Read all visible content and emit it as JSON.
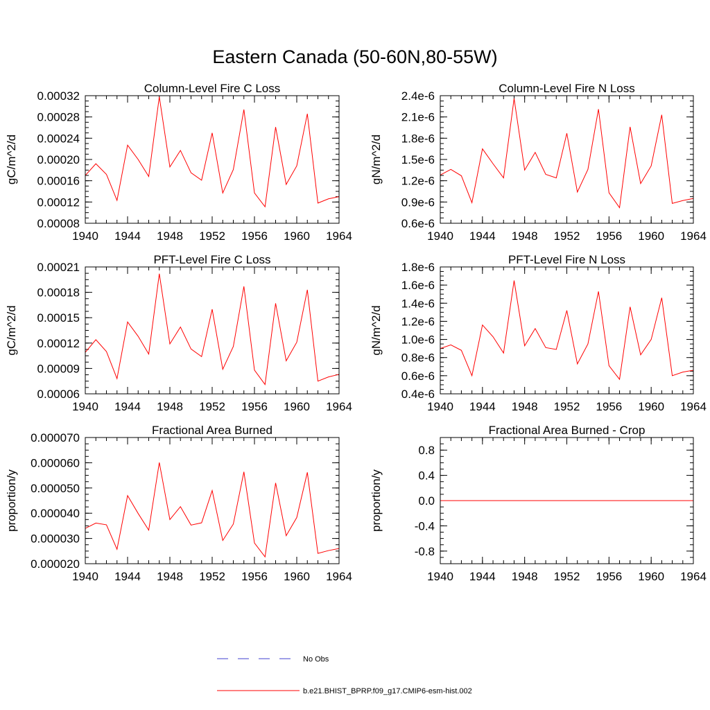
{
  "figure": {
    "title": "Eastern Canada (50-60N,80-55W)"
  },
  "colors": {
    "model_line": "#ff0000",
    "obs_line": "#3f3fcf",
    "axis": "#000000"
  },
  "legend": {
    "placement": "bottom-center",
    "entries": [
      {
        "label": "No Obs",
        "style": "dashed",
        "color": "#3f3fcf"
      },
      {
        "label": "b.e21.BHIST_BPRP.f09_g17.CMIP6-esm-hist.002",
        "style": "solid",
        "color": "#ff0000"
      }
    ]
  },
  "chart_data": [
    {
      "type": "line",
      "title": "Column-Level Fire C Loss",
      "xlabel": "",
      "ylabel": "gC/m^2/d",
      "xlim": [
        1940,
        1964
      ],
      "ylim": [
        8e-05,
        0.00032
      ],
      "xticks": [
        "1940",
        "1944",
        "1948",
        "1952",
        "1956",
        "1960",
        "1964"
      ],
      "yticks": [
        "0.00008",
        "0.00012",
        "0.00016",
        "0.00020",
        "0.00024",
        "0.00028",
        "0.00032"
      ],
      "x": [
        1940,
        1941,
        1942,
        1943,
        1944,
        1945,
        1946,
        1947,
        1948,
        1949,
        1950,
        1951,
        1952,
        1953,
        1954,
        1955,
        1956,
        1957,
        1958,
        1959,
        1960,
        1961,
        1962,
        1963,
        1964
      ],
      "series": [
        {
          "name": "b.e21.BHIST_BPRP.f09_g17.CMIP6-esm-hist.002",
          "values": [
            0.00017,
            0.000192,
            0.000172,
            0.000123,
            0.000227,
            0.0002,
            0.000168,
            0.000318,
            0.000186,
            0.000217,
            0.000175,
            0.000161,
            0.00025,
            0.000137,
            0.000181,
            0.000294,
            0.000137,
            0.000111,
            0.000261,
            0.000153,
            0.000188,
            0.000286,
            0.000118,
            0.000126,
            0.00013
          ]
        }
      ]
    },
    {
      "type": "line",
      "title": "Column-Level Fire N Loss",
      "xlabel": "",
      "ylabel": "gN/m^2/d",
      "xlim": [
        1940,
        1964
      ],
      "ylim": [
        6e-07,
        2.4e-06
      ],
      "xticks": [
        "1940",
        "1944",
        "1948",
        "1952",
        "1956",
        "1960",
        "1964"
      ],
      "yticks": [
        "0.6e-6",
        "0.9e-6",
        "1.2e-6",
        "1.5e-6",
        "1.8e-6",
        "2.1e-6",
        "2.4e-6"
      ],
      "x": [
        1940,
        1941,
        1942,
        1943,
        1944,
        1945,
        1946,
        1947,
        1948,
        1949,
        1950,
        1951,
        1952,
        1953,
        1954,
        1955,
        1956,
        1957,
        1958,
        1959,
        1960,
        1961,
        1962,
        1963,
        1964
      ],
      "series": [
        {
          "name": "b.e21.BHIST_BPRP.f09_g17.CMIP6-esm-hist.002",
          "values": [
            1.28e-06,
            1.36e-06,
            1.27e-06,
            8.9e-07,
            1.65e-06,
            1.44e-06,
            1.24e-06,
            2.36e-06,
            1.35e-06,
            1.6e-06,
            1.29e-06,
            1.24e-06,
            1.87e-06,
            1.04e-06,
            1.36e-06,
            2.21e-06,
            1.03e-06,
            8.2e-07,
            1.96e-06,
            1.16e-06,
            1.41e-06,
            2.13e-06,
            8.8e-07,
            9.2e-07,
            9.5e-07
          ]
        }
      ]
    },
    {
      "type": "line",
      "title": "PFT-Level Fire C Loss",
      "xlabel": "",
      "ylabel": "gC/m^2/d",
      "xlim": [
        1940,
        1964
      ],
      "ylim": [
        6e-05,
        0.00021
      ],
      "xticks": [
        "1940",
        "1944",
        "1948",
        "1952",
        "1956",
        "1960",
        "1964"
      ],
      "yticks": [
        "0.00006",
        "0.00009",
        "0.00012",
        "0.00015",
        "0.00018",
        "0.00021"
      ],
      "x": [
        1940,
        1941,
        1942,
        1943,
        1944,
        1945,
        1946,
        1947,
        1948,
        1949,
        1950,
        1951,
        1952,
        1953,
        1954,
        1955,
        1956,
        1957,
        1958,
        1959,
        1960,
        1961,
        1962,
        1963,
        1964
      ],
      "series": [
        {
          "name": "b.e21.BHIST_BPRP.f09_g17.CMIP6-esm-hist.002",
          "values": [
            0.000109,
            0.000124,
            0.00011,
            7.8e-05,
            0.000145,
            0.000128,
            0.000107,
            0.000202,
            0.000119,
            0.000139,
            0.000113,
            0.000104,
            0.00016,
            8.9e-05,
            0.000116,
            0.000187,
            8.8e-05,
            7.1e-05,
            0.000167,
            9.9e-05,
            0.000121,
            0.000183,
            7.5e-05,
            8e-05,
            8.3e-05
          ]
        }
      ]
    },
    {
      "type": "line",
      "title": "PFT-Level Fire N Loss",
      "xlabel": "",
      "ylabel": "gN/m^2/d",
      "xlim": [
        1940,
        1964
      ],
      "ylim": [
        4e-07,
        1.8e-06
      ],
      "xticks": [
        "1940",
        "1944",
        "1948",
        "1952",
        "1956",
        "1960",
        "1964"
      ],
      "yticks": [
        "0.4e-6",
        "0.6e-6",
        "0.8e-6",
        "1.0e-6",
        "1.2e-6",
        "1.4e-6",
        "1.6e-6",
        "1.8e-6"
      ],
      "x": [
        1940,
        1941,
        1942,
        1943,
        1944,
        1945,
        1946,
        1947,
        1948,
        1949,
        1950,
        1951,
        1952,
        1953,
        1954,
        1955,
        1956,
        1957,
        1958,
        1959,
        1960,
        1961,
        1962,
        1963,
        1964
      ],
      "series": [
        {
          "name": "b.e21.BHIST_BPRP.f09_g17.CMIP6-esm-hist.002",
          "values": [
            9e-07,
            9.4e-07,
            8.8e-07,
            6e-07,
            1.16e-06,
            1.03e-06,
            8.5e-07,
            1.65e-06,
            9.3e-07,
            1.12e-06,
            9.1e-07,
            8.9e-07,
            1.32e-06,
            7.3e-07,
            9.5e-07,
            1.53e-06,
            7.1e-07,
            5.6e-07,
            1.36e-06,
            8.3e-07,
            1e-06,
            1.46e-06,
            6e-07,
            6.4e-07,
            6.6e-07
          ]
        }
      ]
    },
    {
      "type": "line",
      "title": "Fractional Area Burned",
      "xlabel": "",
      "ylabel": "proportion/y",
      "xlim": [
        1940,
        1964
      ],
      "ylim": [
        2e-05,
        7e-05
      ],
      "xticks": [
        "1940",
        "1944",
        "1948",
        "1952",
        "1956",
        "1960",
        "1964"
      ],
      "yticks": [
        "0.000020",
        "0.000030",
        "0.000040",
        "0.000050",
        "0.000060",
        "0.000070"
      ],
      "x": [
        1940,
        1941,
        1942,
        1943,
        1944,
        1945,
        1946,
        1947,
        1948,
        1949,
        1950,
        1951,
        1952,
        1953,
        1954,
        1955,
        1956,
        1957,
        1958,
        1959,
        1960,
        1961,
        1962,
        1963,
        1964
      ],
      "series": [
        {
          "name": "b.e21.BHIST_BPRP.f09_g17.CMIP6-esm-hist.002",
          "values": [
            3.4e-05,
            3.61e-05,
            3.54e-05,
            2.57e-05,
            4.7e-05,
            3.99e-05,
            3.33e-05,
            6.01e-05,
            3.75e-05,
            4.26e-05,
            3.53e-05,
            3.62e-05,
            4.9e-05,
            2.92e-05,
            3.57e-05,
            5.64e-05,
            2.82e-05,
            2.27e-05,
            5.2e-05,
            3.11e-05,
            3.83e-05,
            5.62e-05,
            2.41e-05,
            2.52e-05,
            2.6e-05
          ]
        }
      ]
    },
    {
      "type": "line",
      "title": "Fractional Area Burned - Crop",
      "xlabel": "",
      "ylabel": "proportion/y",
      "xlim": [
        1940,
        1964
      ],
      "ylim": [
        -1.0,
        1.0
      ],
      "xticks": [
        "1940",
        "1944",
        "1948",
        "1952",
        "1956",
        "1960",
        "1964"
      ],
      "yticks": [
        "-0.8",
        "-0.4",
        "0.0",
        "0.4",
        "0.8"
      ],
      "x": [
        1940,
        1941,
        1942,
        1943,
        1944,
        1945,
        1946,
        1947,
        1948,
        1949,
        1950,
        1951,
        1952,
        1953,
        1954,
        1955,
        1956,
        1957,
        1958,
        1959,
        1960,
        1961,
        1962,
        1963,
        1964
      ],
      "series": [
        {
          "name": "b.e21.BHIST_BPRP.f09_g17.CMIP6-esm-hist.002",
          "values": [
            0,
            0,
            0,
            0,
            0,
            0,
            0,
            0,
            0,
            0,
            0,
            0,
            0,
            0,
            0,
            0,
            0,
            0,
            0,
            0,
            0,
            0,
            0,
            0,
            0
          ]
        }
      ]
    }
  ]
}
